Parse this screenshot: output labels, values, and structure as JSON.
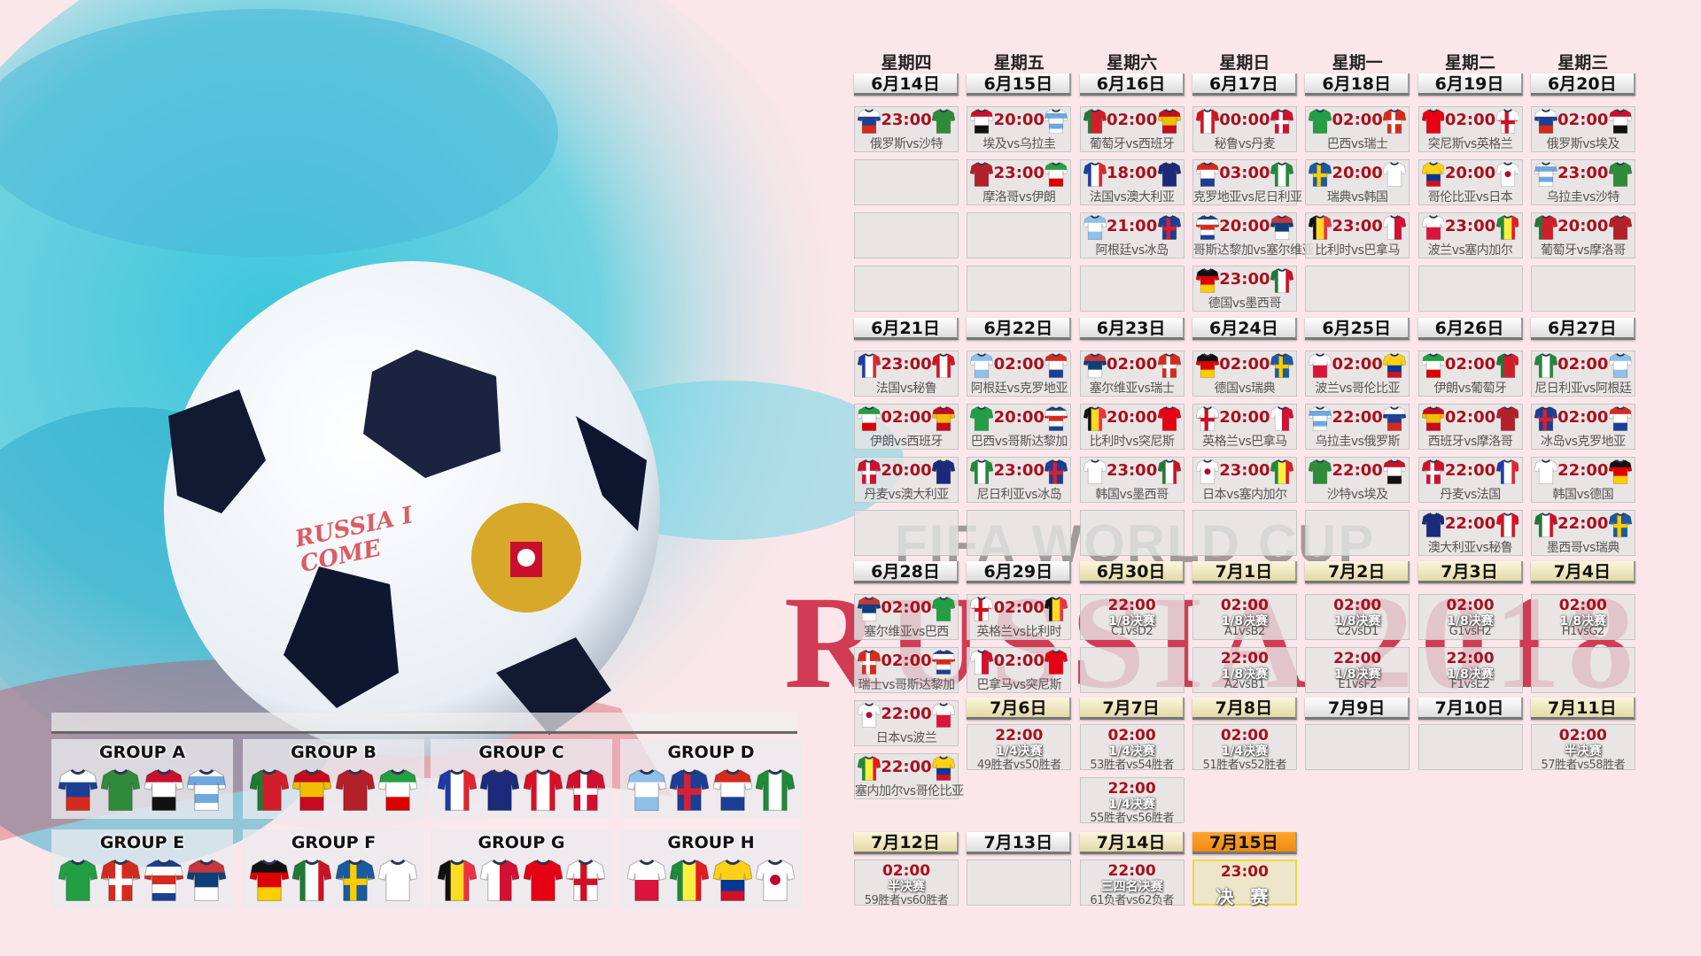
{
  "watermark": {
    "fifa": "FIFA WORLD CUP",
    "russia": "RUSSIA 2018",
    "ball_handwriting": "RUSSIA I COME"
  },
  "weekdays": [
    "星期四",
    "星期五",
    "星期六",
    "星期日",
    "星期一",
    "星期二",
    "星期三"
  ],
  "kits": {
    "俄罗斯": {
      "type": "h",
      "colors": [
        "#ffffff",
        "#1c3f94",
        "#d52b1e"
      ]
    },
    "沙特": {
      "type": "solid",
      "colors": [
        "#2e8b3a"
      ]
    },
    "埃及": {
      "type": "h",
      "colors": [
        "#c8102e",
        "#ffffff",
        "#111111"
      ]
    },
    "乌拉圭": {
      "type": "h",
      "colors": [
        "#ffffff",
        "#6fa8dc",
        "#ffffff",
        "#6fa8dc",
        "#ffffff"
      ]
    },
    "葡萄牙": {
      "type": "v",
      "colors": [
        "#1f7a35",
        "#d21e2b",
        "#d21e2b"
      ]
    },
    "西班牙": {
      "type": "h",
      "colors": [
        "#c60b1e",
        "#f1bf00",
        "#c60b1e"
      ]
    },
    "摩洛哥": {
      "type": "solid",
      "colors": [
        "#b3202a"
      ]
    },
    "伊朗": {
      "type": "h",
      "colors": [
        "#239f40",
        "#ffffff",
        "#da0000"
      ]
    },
    "法国": {
      "type": "v",
      "colors": [
        "#1d3aa8",
        "#ffffff",
        "#e1252f"
      ]
    },
    "澳大利亚": {
      "type": "solid",
      "colors": [
        "#1b2a7b"
      ]
    },
    "秘鲁": {
      "type": "v",
      "colors": [
        "#d91023",
        "#ffffff",
        "#d91023"
      ]
    },
    "丹麦": {
      "type": "cross",
      "colors": [
        "#d0102e",
        "#ffffff"
      ]
    },
    "阿根廷": {
      "type": "h",
      "colors": [
        "#8ec1ea",
        "#ffffff",
        "#8ec1ea"
      ]
    },
    "冰岛": {
      "type": "cross",
      "colors": [
        "#1c3f94",
        "#dc1e35"
      ]
    },
    "克罗地亚": {
      "type": "h",
      "colors": [
        "#d52b1e",
        "#ffffff",
        "#1c3f94"
      ]
    },
    "尼日利亚": {
      "type": "v",
      "colors": [
        "#1f8a3a",
        "#ffffff",
        "#1f8a3a"
      ]
    },
    "巴西": {
      "type": "solid",
      "colors": [
        "#229e45"
      ]
    },
    "瑞士": {
      "type": "cross",
      "colors": [
        "#d52b1e",
        "#ffffff"
      ]
    },
    "哥斯达黎加": {
      "type": "h",
      "colors": [
        "#1c3f94",
        "#ffffff",
        "#d52b1e",
        "#ffffff",
        "#1c3f94"
      ]
    },
    "塞尔维亚": {
      "type": "h",
      "colors": [
        "#c6363c",
        "#0c4076",
        "#ffffff"
      ]
    },
    "德国": {
      "type": "h",
      "colors": [
        "#111111",
        "#dd0000",
        "#ffce00"
      ]
    },
    "墨西哥": {
      "type": "v",
      "colors": [
        "#1f7a35",
        "#ffffff",
        "#ce1126"
      ]
    },
    "瑞典": {
      "type": "cross",
      "colors": [
        "#1a5aa0",
        "#fecc00"
      ]
    },
    "韩国": {
      "type": "solid",
      "colors": [
        "#ffffff"
      ]
    },
    "比利时": {
      "type": "v",
      "colors": [
        "#111111",
        "#fdda24",
        "#ef3340"
      ]
    },
    "巴拿马": {
      "type": "v",
      "colors": [
        "#ffffff",
        "#d21034"
      ]
    },
    "突尼斯": {
      "type": "solid",
      "colors": [
        "#e70013"
      ]
    },
    "英格兰": {
      "type": "cross",
      "colors": [
        "#ffffff",
        "#ce1124"
      ]
    },
    "波兰": {
      "type": "h",
      "colors": [
        "#ffffff",
        "#dc143c"
      ]
    },
    "塞内加尔": {
      "type": "v",
      "colors": [
        "#1f8a3a",
        "#fdef42",
        "#e31b23"
      ]
    },
    "哥伦比亚": {
      "type": "h",
      "colors": [
        "#fcd116",
        "#fcd116",
        "#003893",
        "#ce1126"
      ]
    },
    "日本": {
      "type": "dot",
      "colors": [
        "#ffffff",
        "#bc002d"
      ]
    }
  },
  "group_stage": [
    [
      {
        "date": "6月14日",
        "matches": [
          {
            "time": "23:00",
            "home": "俄罗斯",
            "away": "沙特",
            "label": "俄罗斯vs沙特"
          }
        ]
      },
      {
        "date": "6月15日",
        "matches": [
          {
            "time": "20:00",
            "home": "埃及",
            "away": "乌拉圭",
            "label": "埃及vs乌拉圭"
          },
          {
            "time": "23:00",
            "home": "摩洛哥",
            "away": "伊朗",
            "label": "摩洛哥vs伊朗"
          }
        ]
      },
      {
        "date": "6月16日",
        "matches": [
          {
            "time": "02:00",
            "home": "葡萄牙",
            "away": "西班牙",
            "label": "葡萄牙vs西班牙"
          },
          {
            "time": "18:00",
            "home": "法国",
            "away": "澳大利亚",
            "label": "法国vs澳大利亚"
          },
          {
            "time": "21:00",
            "home": "阿根廷",
            "away": "冰岛",
            "label": "阿根廷vs冰岛"
          }
        ]
      },
      {
        "date": "6月17日",
        "matches": [
          {
            "time": "00:00",
            "home": "秘鲁",
            "away": "丹麦",
            "label": "秘鲁vs丹麦"
          },
          {
            "time": "03:00",
            "home": "克罗地亚",
            "away": "尼日利亚",
            "label": "克罗地亚vs尼日利亚"
          },
          {
            "time": "20:00",
            "home": "哥斯达黎加",
            "away": "塞尔维亚",
            "label": "哥斯达黎加vs塞尔维亚"
          },
          {
            "time": "23:00",
            "home": "德国",
            "away": "墨西哥",
            "label": "德国vs墨西哥"
          }
        ]
      },
      {
        "date": "6月18日",
        "matches": [
          {
            "time": "02:00",
            "home": "巴西",
            "away": "瑞士",
            "label": "巴西vs瑞士"
          },
          {
            "time": "20:00",
            "home": "瑞典",
            "away": "韩国",
            "label": "瑞典vs韩国"
          },
          {
            "time": "23:00",
            "home": "比利时",
            "away": "巴拿马",
            "label": "比利时vs巴拿马"
          }
        ]
      },
      {
        "date": "6月19日",
        "matches": [
          {
            "time": "02:00",
            "home": "突尼斯",
            "away": "英格兰",
            "label": "突尼斯vs英格兰"
          },
          {
            "time": "20:00",
            "home": "哥伦比亚",
            "away": "日本",
            "label": "哥伦比亚vs日本"
          },
          {
            "time": "23:00",
            "home": "波兰",
            "away": "塞内加尔",
            "label": "波兰vs塞内加尔"
          }
        ]
      },
      {
        "date": "6月20日",
        "matches": [
          {
            "time": "02:00",
            "home": "俄罗斯",
            "away": "埃及",
            "label": "俄罗斯vs埃及"
          },
          {
            "time": "23:00",
            "home": "乌拉圭",
            "away": "沙特",
            "label": "乌拉圭vs沙特"
          },
          {
            "time": "20:00",
            "home": "葡萄牙",
            "away": "摩洛哥",
            "label": "葡萄牙vs摩洛哥"
          }
        ]
      }
    ],
    [
      {
        "date": "6月21日",
        "matches": [
          {
            "time": "23:00",
            "home": "法国",
            "away": "秘鲁",
            "label": "法国vs秘鲁"
          },
          {
            "time": "02:00",
            "home": "伊朗",
            "away": "西班牙",
            "label": "伊朗vs西班牙"
          },
          {
            "time": "20:00",
            "home": "丹麦",
            "away": "澳大利亚",
            "label": "丹麦vs澳大利亚"
          }
        ]
      },
      {
        "date": "6月22日",
        "matches": [
          {
            "time": "02:00",
            "home": "阿根廷",
            "away": "克罗地亚",
            "label": "阿根廷vs克罗地亚"
          },
          {
            "time": "20:00",
            "home": "巴西",
            "away": "哥斯达黎加",
            "label": "巴西vs哥斯达黎加"
          },
          {
            "time": "23:00",
            "home": "尼日利亚",
            "away": "冰岛",
            "label": "尼日利亚vs冰岛"
          }
        ]
      },
      {
        "date": "6月23日",
        "matches": [
          {
            "time": "02:00",
            "home": "塞尔维亚",
            "away": "瑞士",
            "label": "塞尔维亚vs瑞士"
          },
          {
            "time": "20:00",
            "home": "比利时",
            "away": "突尼斯",
            "label": "比利时vs突尼斯"
          },
          {
            "time": "23:00",
            "home": "韩国",
            "away": "墨西哥",
            "label": "韩国vs墨西哥"
          }
        ]
      },
      {
        "date": "6月24日",
        "matches": [
          {
            "time": "02:00",
            "home": "德国",
            "away": "瑞典",
            "label": "德国vs瑞典"
          },
          {
            "time": "20:00",
            "home": "英格兰",
            "away": "巴拿马",
            "label": "英格兰vs巴拿马"
          },
          {
            "time": "23:00",
            "home": "日本",
            "away": "塞内加尔",
            "label": "日本vs塞内加尔"
          }
        ]
      },
      {
        "date": "6月25日",
        "matches": [
          {
            "time": "02:00",
            "home": "波兰",
            "away": "哥伦比亚",
            "label": "波兰vs哥伦比亚"
          },
          {
            "time": "22:00",
            "home": "乌拉圭",
            "away": "俄罗斯",
            "label": "乌拉圭vs俄罗斯"
          },
          {
            "time": "22:00",
            "home": "沙特",
            "away": "埃及",
            "label": "沙特vs埃及"
          }
        ]
      },
      {
        "date": "6月26日",
        "matches": [
          {
            "time": "02:00",
            "home": "伊朗",
            "away": "葡萄牙",
            "label": "伊朗vs葡萄牙"
          },
          {
            "time": "02:00",
            "home": "西班牙",
            "away": "摩洛哥",
            "label": "西班牙vs摩洛哥"
          },
          {
            "time": "22:00",
            "home": "丹麦",
            "away": "法国",
            "label": "丹麦vs法国"
          },
          {
            "time": "22:00",
            "home": "澳大利亚",
            "away": "秘鲁",
            "label": "澳大利亚vs秘鲁"
          }
        ]
      },
      {
        "date": "6月27日",
        "matches": [
          {
            "time": "02:00",
            "home": "尼日利亚",
            "away": "阿根廷",
            "label": "尼日利亚vs阿根廷"
          },
          {
            "time": "02:00",
            "home": "冰岛",
            "away": "克罗地亚",
            "label": "冰岛vs克罗地亚"
          },
          {
            "time": "22:00",
            "home": "韩国",
            "away": "德国",
            "label": "韩国vs德国"
          },
          {
            "time": "22:00",
            "home": "墨西哥",
            "away": "瑞典",
            "label": "墨西哥vs瑞典"
          }
        ]
      }
    ]
  ],
  "knockout": [
    {
      "date": "6月28日",
      "style": "plain",
      "matches": [
        {
          "time": "02:00",
          "home": "塞尔维亚",
          "away": "巴西",
          "label": "塞尔维亚vs巴西"
        },
        {
          "time": "02:00",
          "home": "瑞士",
          "away": "哥斯达黎加",
          "label": "瑞士vs哥斯达黎加"
        },
        {
          "time": "22:00",
          "home": "日本",
          "away": "波兰",
          "label": "日本vs波兰"
        },
        {
          "time": "22:00",
          "home": "塞内加尔",
          "away": "哥伦比亚",
          "label": "塞内加尔vs哥伦比亚"
        }
      ]
    },
    {
      "date": "6月29日",
      "style": "plain",
      "matches": [
        {
          "time": "02:00",
          "home": "英格兰",
          "away": "比利时",
          "label": "英格兰vs比利时"
        },
        {
          "time": "02:00",
          "home": "巴拿马",
          "away": "突尼斯",
          "label": "巴拿马vs突尼斯"
        }
      ]
    },
    {
      "date": "6月30日",
      "style": "ko",
      "matches": [
        {
          "time": "22:00",
          "stage": "1/8决赛",
          "label": "C1vsD2"
        },
        null
      ]
    },
    {
      "date": "7月1日",
      "style": "ko",
      "matches": [
        {
          "time": "02:00",
          "stage": "1/8决赛",
          "label": "A1vsB2"
        },
        {
          "time": "22:00",
          "stage": "1/8决赛",
          "label": "A2vsB1"
        }
      ]
    },
    {
      "date": "7月2日",
      "style": "ko",
      "matches": [
        {
          "time": "02:00",
          "stage": "1/8决赛",
          "label": "C2vsD1"
        },
        {
          "time": "22:00",
          "stage": "1/8决赛",
          "label": "E1vsF2"
        }
      ]
    },
    {
      "date": "7月3日",
      "style": "ko",
      "matches": [
        {
          "time": "02:00",
          "stage": "1/8决赛",
          "label": "G1vsH2"
        },
        {
          "time": "22:00",
          "stage": "1/8决赛",
          "label": "F1vsE2"
        }
      ]
    },
    {
      "date": "7月4日",
      "style": "ko",
      "matches": [
        {
          "time": "02:00",
          "stage": "1/8决赛",
          "label": "H1vsG2"
        },
        null
      ]
    },
    {
      "date": "7月6日",
      "style": "ko",
      "matches": [
        {
          "time": "22:00",
          "stage": "1/4决赛",
          "label": "49胜者vs50胜者"
        }
      ]
    },
    {
      "date": "7月7日",
      "style": "ko",
      "matches": [
        {
          "time": "02:00",
          "stage": "1/4决赛",
          "label": "53胜者vs54胜者"
        },
        {
          "time": "22:00",
          "stage": "1/4决赛",
          "label": "55胜者vs56胜者"
        }
      ]
    },
    {
      "date": "7月8日",
      "style": "ko",
      "matches": [
        {
          "time": "02:00",
          "stage": "1/4决赛",
          "label": "51胜者vs52胜者"
        }
      ]
    },
    {
      "date": "7月9日",
      "style": "plain",
      "matches": [
        null
      ]
    },
    {
      "date": "7月10日",
      "style": "plain",
      "matches": [
        null
      ]
    },
    {
      "date": "7月11日",
      "style": "ko",
      "matches": [
        {
          "time": "02:00",
          "stage": "半决赛",
          "label": "57胜者vs58胜者"
        }
      ]
    },
    {
      "date": "7月12日",
      "style": "ko",
      "matches": [
        {
          "time": "02:00",
          "stage": "半决赛",
          "label": "59胜者vs60胜者"
        }
      ]
    },
    {
      "date": "7月13日",
      "style": "plain",
      "matches": [
        null
      ]
    },
    {
      "date": "7月14日",
      "style": "ko",
      "matches": [
        {
          "time": "22:00",
          "stage": "三四名决赛",
          "label": "61负者vs62负者"
        }
      ]
    },
    {
      "date": "7月15日",
      "style": "final",
      "matches": [
        {
          "time": "23:00",
          "stage": "决 赛",
          "final": true
        }
      ]
    }
  ],
  "groups": [
    {
      "name": "GROUP A",
      "teams": [
        "俄罗斯",
        "沙特",
        "埃及",
        "乌拉圭"
      ]
    },
    {
      "name": "GROUP B",
      "teams": [
        "葡萄牙",
        "西班牙",
        "摩洛哥",
        "伊朗"
      ]
    },
    {
      "name": "GROUP C",
      "teams": [
        "法国",
        "澳大利亚",
        "秘鲁",
        "丹麦"
      ]
    },
    {
      "name": "GROUP D",
      "teams": [
        "阿根廷",
        "冰岛",
        "克罗地亚",
        "尼日利亚"
      ]
    },
    {
      "name": "GROUP E",
      "teams": [
        "巴西",
        "瑞士",
        "哥斯达黎加",
        "塞尔维亚"
      ]
    },
    {
      "name": "GROUP F",
      "teams": [
        "德国",
        "墨西哥",
        "瑞典",
        "韩国"
      ]
    },
    {
      "name": "GROUP G",
      "teams": [
        "比利时",
        "巴拿马",
        "突尼斯",
        "英格兰"
      ]
    },
    {
      "name": "GROUP H",
      "teams": [
        "波兰",
        "塞内加尔",
        "哥伦比亚",
        "日本"
      ]
    }
  ]
}
